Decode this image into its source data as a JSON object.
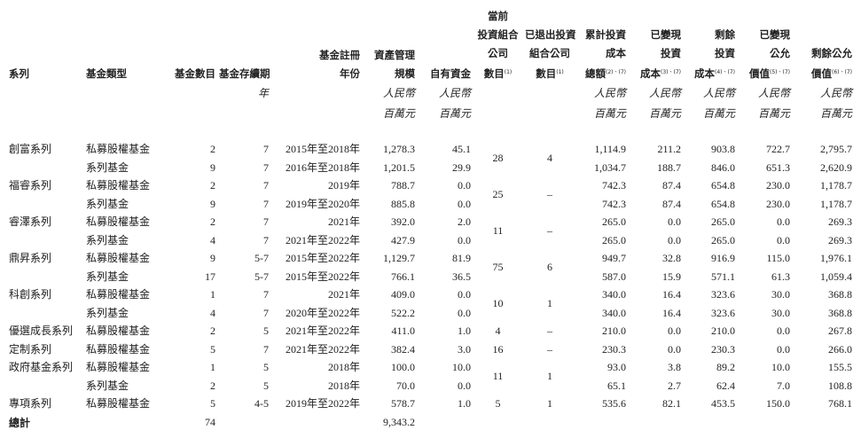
{
  "table": {
    "headers": [
      {
        "lines": [
          "系列"
        ],
        "align": "left"
      },
      {
        "lines": [
          "基金類型"
        ],
        "align": "left"
      },
      {
        "lines": [
          "基金數目"
        ],
        "align": "right"
      },
      {
        "lines": [
          "基金存續期"
        ],
        "align": "right",
        "units": [
          "年"
        ]
      },
      {
        "lines": [
          "基金註冊",
          "年份"
        ],
        "align": "right"
      },
      {
        "lines": [
          "資產管理",
          "規模"
        ],
        "align": "right",
        "units": [
          "人民幣",
          "百萬元"
        ]
      },
      {
        "lines": [
          "自有資金"
        ],
        "align": "right",
        "units": [
          "人民幣",
          "百萬元"
        ]
      },
      {
        "lines": [
          "當前",
          "投資組合",
          "公司",
          "數目"
        ],
        "note": "(1)",
        "align": "center"
      },
      {
        "lines": [
          "已退出投資",
          "組合公司",
          "數目"
        ],
        "note": "(1)",
        "align": "center"
      },
      {
        "lines": [
          "累計投資",
          "成本",
          "總額"
        ],
        "note": "(2)、(7)",
        "align": "right",
        "units": [
          "人民幣",
          "百萬元"
        ]
      },
      {
        "lines": [
          "已變現",
          "投資",
          "成本"
        ],
        "note": "(3)、(7)",
        "align": "right",
        "units": [
          "人民幣",
          "百萬元"
        ]
      },
      {
        "lines": [
          "剩餘",
          "投資",
          "成本"
        ],
        "note": "(4)、(7)",
        "align": "right",
        "units": [
          "人民幣",
          "百萬元"
        ]
      },
      {
        "lines": [
          "已變現",
          "公允",
          "價值"
        ],
        "note": "(5)、(7)",
        "align": "right",
        "units": [
          "人民幣",
          "百萬元"
        ]
      },
      {
        "lines": [
          "剩餘公允",
          "價值"
        ],
        "note": "(6)、(7)",
        "align": "right",
        "units": [
          "人民幣",
          "百萬元"
        ]
      }
    ],
    "groups": [
      {
        "series": "創富系列",
        "current": "28",
        "exited": "4",
        "rows": [
          [
            "私募股權基金",
            "2",
            "7",
            "2015年至2018年",
            "1,278.3",
            "45.1",
            "1,114.9",
            "211.2",
            "903.8",
            "722.7",
            "2,795.7"
          ],
          [
            "系列基金",
            "9",
            "7",
            "2016年至2018年",
            "1,201.5",
            "29.9",
            "1,034.7",
            "188.7",
            "846.0",
            "651.3",
            "2,620.9"
          ]
        ]
      },
      {
        "series": "福睿系列",
        "current": "25",
        "exited": "–",
        "rows": [
          [
            "私募股權基金",
            "2",
            "7",
            "2019年",
            "788.7",
            "0.0",
            "742.3",
            "87.4",
            "654.8",
            "230.0",
            "1,178.7"
          ],
          [
            "系列基金",
            "9",
            "7",
            "2019年至2020年",
            "885.8",
            "0.0",
            "742.3",
            "87.4",
            "654.8",
            "230.0",
            "1,178.7"
          ]
        ]
      },
      {
        "series": "睿澤系列",
        "current": "11",
        "exited": "–",
        "rows": [
          [
            "私募股權基金",
            "2",
            "7",
            "2021年",
            "392.0",
            "2.0",
            "265.0",
            "0.0",
            "265.0",
            "0.0",
            "269.3"
          ],
          [
            "系列基金",
            "4",
            "7",
            "2021年至2022年",
            "427.9",
            "0.0",
            "265.0",
            "0.0",
            "265.0",
            "0.0",
            "269.3"
          ]
        ]
      },
      {
        "series": "鼎昇系列",
        "current": "75",
        "exited": "6",
        "rows": [
          [
            "私募股權基金",
            "9",
            "5-7",
            "2015年至2022年",
            "1,129.7",
            "81.9",
            "949.7",
            "32.8",
            "916.9",
            "115.0",
            "1,976.1"
          ],
          [
            "系列基金",
            "17",
            "5-7",
            "2015年至2022年",
            "766.1",
            "36.5",
            "587.0",
            "15.9",
            "571.1",
            "61.3",
            "1,059.4"
          ]
        ]
      },
      {
        "series": "科創系列",
        "current": "10",
        "exited": "1",
        "rows": [
          [
            "私募股權基金",
            "1",
            "7",
            "2021年",
            "409.0",
            "0.0",
            "340.0",
            "16.4",
            "323.6",
            "30.0",
            "368.8"
          ],
          [
            "系列基金",
            "4",
            "7",
            "2020年至2022年",
            "522.2",
            "0.0",
            "340.0",
            "16.4",
            "323.6",
            "30.0",
            "368.8"
          ]
        ]
      },
      {
        "series": "優選成長系列",
        "current": "4",
        "exited": "–",
        "rows": [
          [
            "私募股權基金",
            "2",
            "5",
            "2021年至2022年",
            "411.0",
            "1.0",
            "210.0",
            "0.0",
            "210.0",
            "0.0",
            "267.8"
          ]
        ]
      },
      {
        "series": "定制系列",
        "current": "16",
        "exited": "–",
        "rows": [
          [
            "私募股權基金",
            "5",
            "7",
            "2021年至2022年",
            "382.4",
            "3.0",
            "230.3",
            "0.0",
            "230.3",
            "0.0",
            "266.0"
          ]
        ]
      },
      {
        "series": "政府基金系列",
        "current": "11",
        "exited": "1",
        "rows": [
          [
            "私募股權基金",
            "1",
            "5",
            "2018年",
            "100.0",
            "10.0",
            "93.0",
            "3.8",
            "89.2",
            "10.0",
            "155.5"
          ],
          [
            "系列基金",
            "2",
            "5",
            "2018年",
            "70.0",
            "0.0",
            "65.1",
            "2.7",
            "62.4",
            "7.0",
            "108.8"
          ]
        ]
      },
      {
        "series": "專項系列",
        "current": "5",
        "exited": "1",
        "rows": [
          [
            "私募股權基金",
            "5",
            "4-5",
            "2019年至2022年",
            "578.7",
            "1.0",
            "535.6",
            "82.1",
            "453.5",
            "150.0",
            "768.1"
          ]
        ]
      }
    ],
    "total": {
      "label": "總計",
      "fund_count": "74",
      "aum": "9,343.2"
    }
  }
}
